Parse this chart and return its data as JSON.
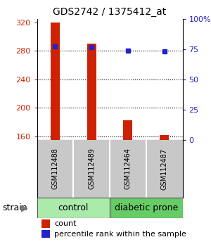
{
  "title": "GDS2742 / 1375412_at",
  "samples": [
    "GSM112488",
    "GSM112489",
    "GSM112464",
    "GSM112487"
  ],
  "red_values": [
    320,
    290,
    183,
    162
  ],
  "blue_values": [
    286,
    285,
    280,
    279
  ],
  "ymin": 155,
  "ymax": 325,
  "yticks": [
    160,
    200,
    240,
    280,
    320
  ],
  "right_yticks": [
    0,
    25,
    50,
    75,
    100
  ],
  "bar_color": "#CC2200",
  "dot_color": "#2222CC",
  "bar_width": 0.25,
  "background_color": "#ffffff",
  "sample_bg": "#C8C8C8",
  "sample_divider": "#ffffff",
  "control_color": "#AAEAAA",
  "diabetic_color": "#66CC66",
  "group_border": "#555555",
  "legend_count_color": "#CC2200",
  "legend_dot_color": "#2222CC",
  "title_fontsize": 10,
  "tick_fontsize": 8,
  "sample_fontsize": 7,
  "group_fontsize": 9,
  "legend_fontsize": 8
}
